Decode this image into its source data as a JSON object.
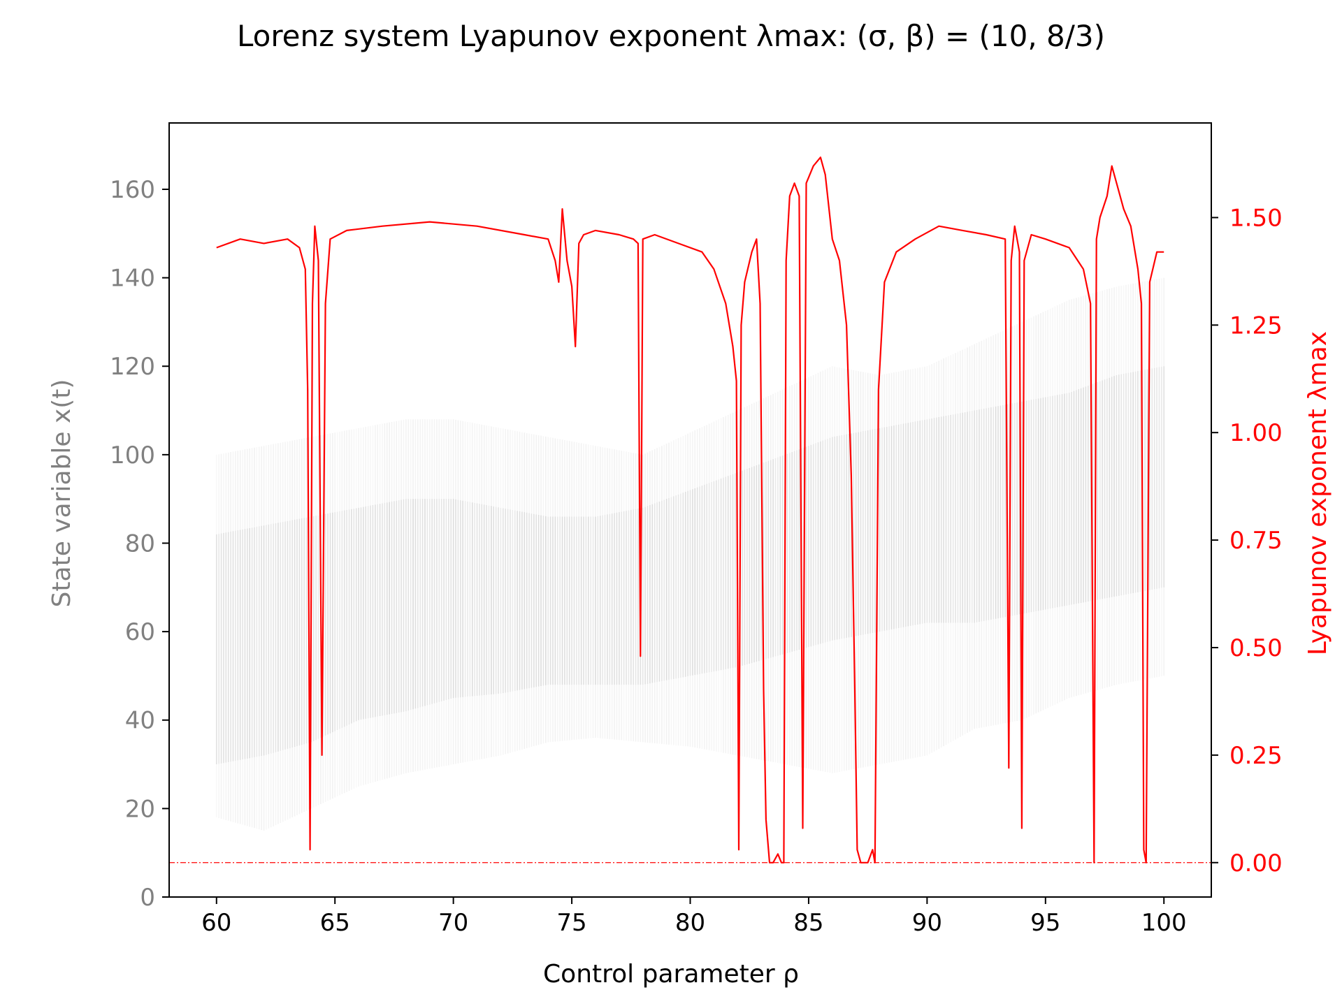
{
  "chart_data": {
    "type": "line",
    "title": "Lorenz system Lyapunov exponent λmax: (σ, β) = (10, 8/3)",
    "xlabel": "Control parameter ρ",
    "ylabel_left": "State variable x(t)",
    "ylabel_right": "Lyapunov exponent λmax",
    "xlim": [
      58,
      102
    ],
    "ylim_left": [
      0,
      175
    ],
    "ylim_right": [
      -0.08,
      1.72
    ],
    "x_ticks": [
      60,
      65,
      70,
      75,
      80,
      85,
      90,
      95,
      100
    ],
    "y_left_ticks": [
      0,
      20,
      40,
      60,
      80,
      100,
      120,
      140,
      160
    ],
    "y_right_ticks": [
      "0.00",
      "0.25",
      "0.50",
      "0.75",
      "1.00",
      "1.25",
      "1.50"
    ],
    "colors": {
      "lyapunov": "#ff0000",
      "state": "#808080",
      "zero_line": "#ff0000"
    },
    "zero_line": 0.0,
    "series": [
      {
        "name": "",
        "style": "line",
        "x": [
          60.0,
          61.0,
          62.0,
          63.0,
          63.5,
          63.75,
          63.85,
          63.95,
          64.05,
          64.15,
          64.3,
          64.45,
          64.6,
          64.8,
          65.5,
          67,
          69,
          71,
          73,
          74.0,
          74.3,
          74.45,
          74.6,
          74.8,
          75.0,
          75.15,
          75.3,
          75.5,
          76,
          77,
          77.6,
          77.8,
          77.9,
          78.0,
          78.5,
          79.5,
          80.5,
          81.0,
          81.5,
          81.8,
          81.95,
          82.05,
          82.15,
          82.3,
          82.6,
          82.8,
          82.95,
          83.1,
          83.2,
          83.35,
          83.5,
          83.7,
          83.85,
          83.95,
          84.05,
          84.2,
          84.4,
          84.6,
          84.75,
          84.9,
          85.2,
          85.5,
          85.7,
          86.0,
          86.3,
          86.6,
          86.8,
          86.95,
          87.05,
          87.2,
          87.35,
          87.5,
          87.7,
          87.8,
          87.95,
          88.2,
          88.7,
          89.5,
          90.5,
          91.5,
          92.5,
          93.3,
          93.45,
          93.55,
          93.7,
          93.9,
          94.0,
          94.1,
          94.4,
          95,
          96,
          96.6,
          96.9,
          97.05,
          97.15,
          97.3,
          97.6,
          97.8,
          98.0,
          98.3,
          98.6,
          98.9,
          99.05,
          99.15,
          99.25,
          99.4,
          99.7,
          100.0
        ],
        "y": [
          1.43,
          1.45,
          1.44,
          1.45,
          1.43,
          1.38,
          1.1,
          0.03,
          1.3,
          1.48,
          1.4,
          0.25,
          1.3,
          1.45,
          1.47,
          1.48,
          1.49,
          1.48,
          1.46,
          1.45,
          1.4,
          1.35,
          1.52,
          1.4,
          1.34,
          1.2,
          1.44,
          1.46,
          1.47,
          1.46,
          1.45,
          1.44,
          0.48,
          1.45,
          1.46,
          1.44,
          1.42,
          1.38,
          1.3,
          1.2,
          1.12,
          0.03,
          1.25,
          1.35,
          1.42,
          1.45,
          1.3,
          0.4,
          0.1,
          0.0,
          0.0,
          0.02,
          0.0,
          0.0,
          1.4,
          1.55,
          1.58,
          1.55,
          0.08,
          1.58,
          1.62,
          1.64,
          1.6,
          1.45,
          1.4,
          1.25,
          0.9,
          0.4,
          0.03,
          0.0,
          0.0,
          0.0,
          0.03,
          0.0,
          1.1,
          1.35,
          1.42,
          1.45,
          1.48,
          1.47,
          1.46,
          1.45,
          0.22,
          1.4,
          1.48,
          1.42,
          0.08,
          1.4,
          1.46,
          1.45,
          1.43,
          1.38,
          1.3,
          0.0,
          1.45,
          1.5,
          1.55,
          1.62,
          1.58,
          1.52,
          1.48,
          1.38,
          1.3,
          0.03,
          0.0,
          1.35,
          1.42,
          1.42
        ]
      }
    ],
    "state_band": {
      "x": [
        60,
        62,
        64,
        66,
        68,
        70,
        72,
        74,
        76,
        78,
        80,
        82,
        84,
        86,
        88,
        90,
        92,
        94,
        96,
        98,
        100
      ],
      "y_min": [
        18,
        15,
        20,
        25,
        28,
        30,
        32,
        35,
        36,
        35,
        34,
        32,
        30,
        28,
        30,
        32,
        38,
        40,
        45,
        48,
        50
      ],
      "y_max": [
        100,
        102,
        104,
        106,
        108,
        108,
        106,
        104,
        102,
        100,
        105,
        110,
        115,
        120,
        118,
        120,
        125,
        130,
        135,
        138,
        140
      ],
      "core_min": [
        30,
        32,
        35,
        40,
        42,
        45,
        46,
        48,
        48,
        48,
        50,
        52,
        55,
        58,
        60,
        62,
        62,
        64,
        66,
        68,
        70
      ],
      "core_max": [
        82,
        84,
        86,
        88,
        90,
        90,
        88,
        86,
        86,
        88,
        92,
        96,
        100,
        104,
        106,
        108,
        110,
        112,
        114,
        118,
        120
      ]
    }
  }
}
